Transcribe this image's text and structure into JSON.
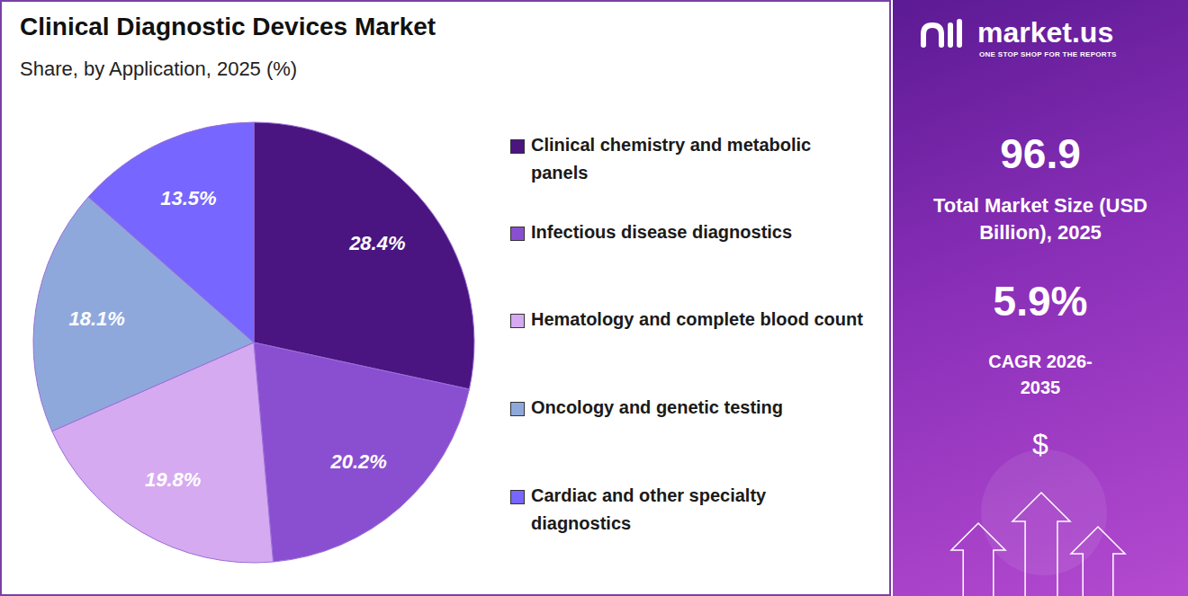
{
  "chart_data": {
    "type": "pie",
    "title": "Clinical Diagnostic Devices Market",
    "subtitle": "Share, by Application, 2025 (%)",
    "categories": [
      "Clinical chemistry and metabolic panels",
      "Infectious disease diagnostics",
      "Hematology and complete blood count",
      "Oncology and genetic testing",
      "Cardiac and other specialty diagnostics"
    ],
    "values": [
      28.4,
      20.2,
      19.8,
      18.1,
      13.5
    ],
    "value_labels": [
      "28.4%",
      "20.2%",
      "19.8%",
      "18.1%",
      "13.5%"
    ],
    "colors": [
      "#4a1580",
      "#8a4fd0",
      "#d6aaf0",
      "#8fa8dc",
      "#7766ff"
    ],
    "data_labels": true,
    "legend": "right"
  },
  "panel": {
    "brand": "market.us",
    "tagline": "ONE STOP SHOP FOR THE REPORTS",
    "market_size": "96.9",
    "market_size_label": "Total Market Size (USD Billion), 2025",
    "cagr": "5.9%",
    "cagr_label": "CAGR 2026-2035",
    "currency": "$"
  }
}
